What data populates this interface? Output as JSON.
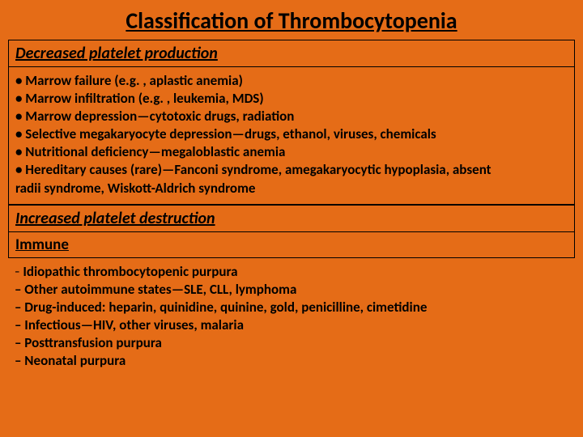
{
  "title": "Classification of Thrombocytopenia",
  "section1": {
    "header": "Decreased platelet production",
    "bullets": [
      "• Marrow failure (e.g. , aplastic anemia)",
      "• Marrow infiltration (e.g. , leukemia, MDS)",
      "• Marrow depression—cytotoxic drugs, radiation",
      "• Selective megakaryocyte depression—drugs, ethanol, viruses, chemicals",
      "• Nutritional deficiency—megaloblastic anemia",
      "• Hereditary causes (rare)—Fanconi syndrome, amegakaryocytic hypoplasia, absent",
      "radii syndrome, Wiskott-Aldrich syndrome"
    ]
  },
  "section2": {
    "header": "Increased platelet destruction",
    "subheader": "Immune",
    "bullets": [
      "– Idiopathic thrombocytopenic purpura",
      "– Other autoimmune states—SLE, CLL, lymphoma",
      "– Drug-induced: heparin, quinidine, quinine, gold, penicilline, cimetidine",
      "– Infectious—HIV, other viruses, malaria",
      "– Posttransfusion purpura",
      "– Neonatal purpura"
    ]
  },
  "colors": {
    "background": "#e56c17",
    "text": "#000000",
    "border": "#000000"
  },
  "typography": {
    "title_fontsize": 28,
    "header_fontsize": 20,
    "subheader_fontsize": 19,
    "body_fontsize": 17,
    "font_family": "Calibri"
  }
}
